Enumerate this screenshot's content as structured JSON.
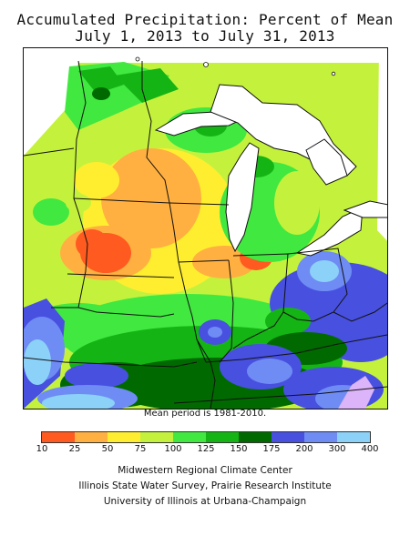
{
  "title_line1": "Accumulated Precipitation: Percent of Mean",
  "title_line2": "July 1, 2013 to July 31, 2013",
  "mean_period_note": "Mean period is 1981-2010.",
  "legend": {
    "ticks": [
      "10",
      "25",
      "50",
      "75",
      "100",
      "125",
      "150",
      "175",
      "200",
      "300",
      "400"
    ],
    "colors": [
      "#ff5a20",
      "#ffb040",
      "#ffee30",
      "#c4f23c",
      "#40e840",
      "#14b414",
      "#006a00",
      "#4850e0",
      "#6e8cf4",
      "#8cd2f8",
      "#dcb4fa"
    ]
  },
  "credits": [
    "Midwestern Regional Climate Center",
    "Illinois State Water Survey, Prairie Research Institute",
    "University of Illinois at Urbana-Champaign"
  ]
}
